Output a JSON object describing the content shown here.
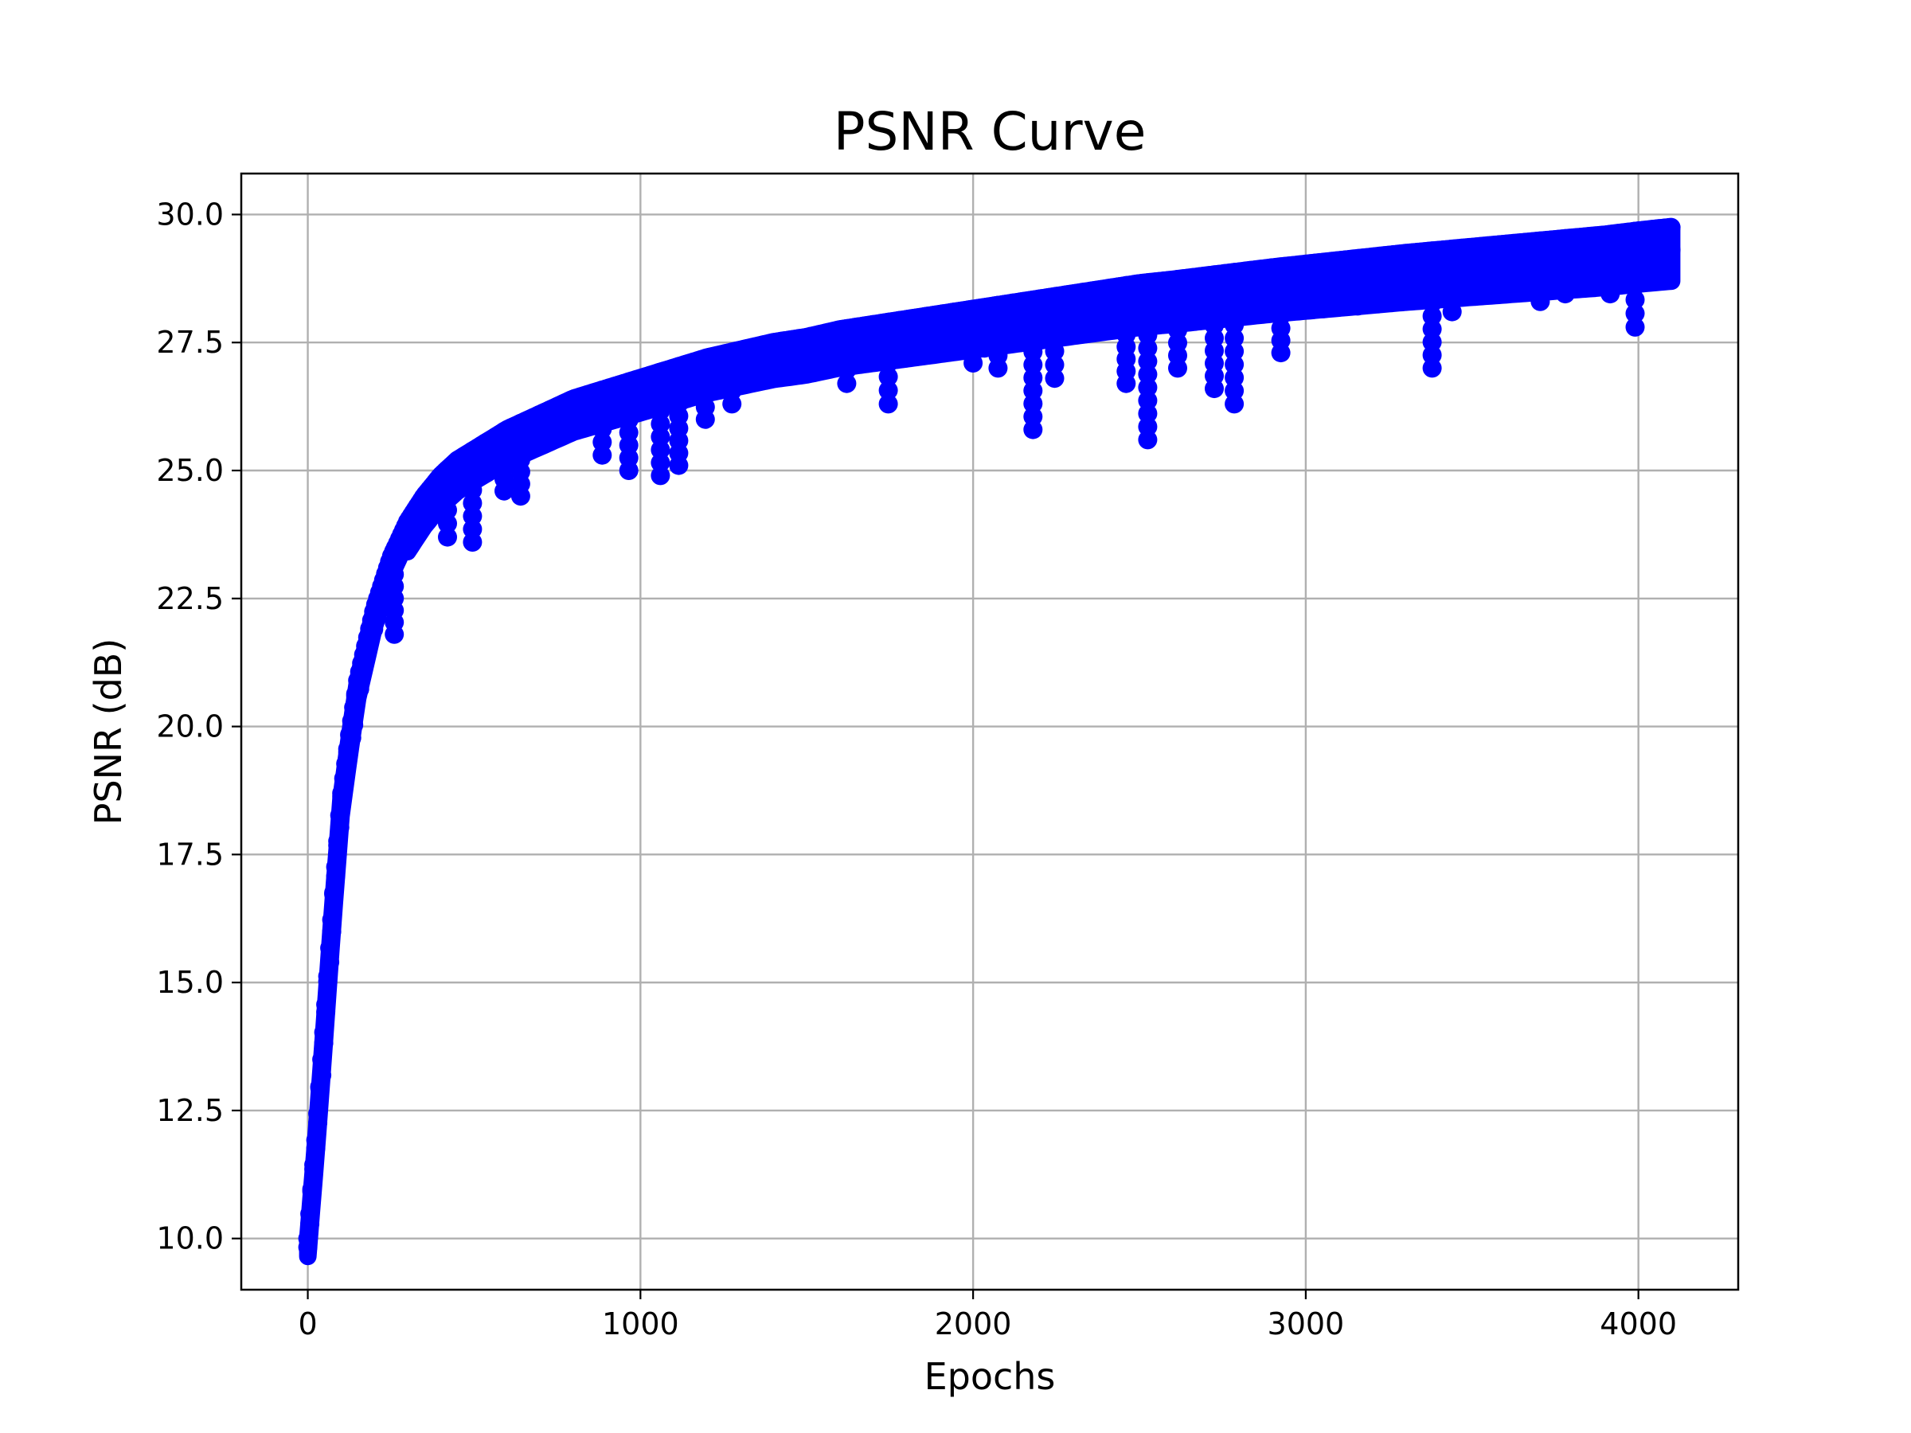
{
  "chart_data": {
    "type": "line",
    "title": "PSNR Curve",
    "xlabel": "Epochs",
    "ylabel": "PSNR (dB)",
    "xlim": [
      -200,
      4300
    ],
    "ylim": [
      9.0,
      30.8
    ],
    "xticks": [
      0,
      1000,
      2000,
      3000,
      4000
    ],
    "xtick_labels": [
      "0",
      "1000",
      "2000",
      "3000",
      "4000"
    ],
    "yticks": [
      10.0,
      12.5,
      15.0,
      17.5,
      20.0,
      22.5,
      25.0,
      27.5,
      30.0
    ],
    "ytick_labels": [
      "10.0",
      "12.5",
      "15.0",
      "17.5",
      "20.0",
      "22.5",
      "25.0",
      "27.5",
      "30.0"
    ],
    "grid": true,
    "series": [
      {
        "color": "#0000ff",
        "marker": "circle",
        "x": [
          0,
          25,
          50,
          75,
          100,
          125,
          150,
          175,
          200,
          250,
          300,
          350,
          400,
          450,
          500,
          600,
          700,
          800,
          900,
          1000,
          1100,
          1200,
          1300,
          1400,
          1500,
          1600,
          1700,
          1800,
          1900,
          2000,
          2100,
          2200,
          2300,
          2400,
          2500,
          2600,
          2700,
          2800,
          2900,
          3000,
          3100,
          3200,
          3300,
          3400,
          3500,
          3600,
          3700,
          3800,
          3900,
          4000,
          4100
        ],
        "y": [
          10.0,
          12.0,
          14.2,
          16.5,
          18.6,
          19.8,
          20.9,
          21.6,
          22.3,
          23.3,
          24.0,
          24.5,
          24.9,
          25.2,
          25.4,
          25.8,
          26.1,
          26.4,
          26.6,
          26.8,
          27.0,
          27.2,
          27.35,
          27.5,
          27.6,
          27.75,
          27.85,
          27.95,
          28.05,
          28.15,
          28.25,
          28.35,
          28.45,
          28.55,
          28.65,
          28.72,
          28.8,
          28.88,
          28.96,
          29.03,
          29.1,
          29.17,
          29.24,
          29.3,
          29.36,
          29.42,
          29.48,
          29.54,
          29.6,
          29.68,
          29.75
        ]
      }
    ],
    "dips": [
      {
        "x": 260,
        "y": 21.8
      },
      {
        "x": 420,
        "y": 23.7
      },
      {
        "x": 495,
        "y": 23.6
      },
      {
        "x": 590,
        "y": 24.6
      },
      {
        "x": 640,
        "y": 24.5
      },
      {
        "x": 885,
        "y": 25.3
      },
      {
        "x": 965,
        "y": 25.0
      },
      {
        "x": 1060,
        "y": 24.9
      },
      {
        "x": 1115,
        "y": 25.1
      },
      {
        "x": 1195,
        "y": 26.0
      },
      {
        "x": 1275,
        "y": 26.3
      },
      {
        "x": 1620,
        "y": 26.7
      },
      {
        "x": 1745,
        "y": 26.3
      },
      {
        "x": 2000,
        "y": 27.1
      },
      {
        "x": 2075,
        "y": 27.0
      },
      {
        "x": 2180,
        "y": 25.8
      },
      {
        "x": 2245,
        "y": 26.8
      },
      {
        "x": 2460,
        "y": 26.7
      },
      {
        "x": 2525,
        "y": 25.6
      },
      {
        "x": 2615,
        "y": 27.0
      },
      {
        "x": 2725,
        "y": 26.6
      },
      {
        "x": 2785,
        "y": 26.3
      },
      {
        "x": 2925,
        "y": 27.3
      },
      {
        "x": 3380,
        "y": 27.0
      },
      {
        "x": 3440,
        "y": 28.1
      },
      {
        "x": 3705,
        "y": 28.3
      },
      {
        "x": 3780,
        "y": 28.45
      },
      {
        "x": 3915,
        "y": 28.45
      },
      {
        "x": 3990,
        "y": 27.8
      },
      {
        "x": 4060,
        "y": 29.0
      }
    ]
  }
}
